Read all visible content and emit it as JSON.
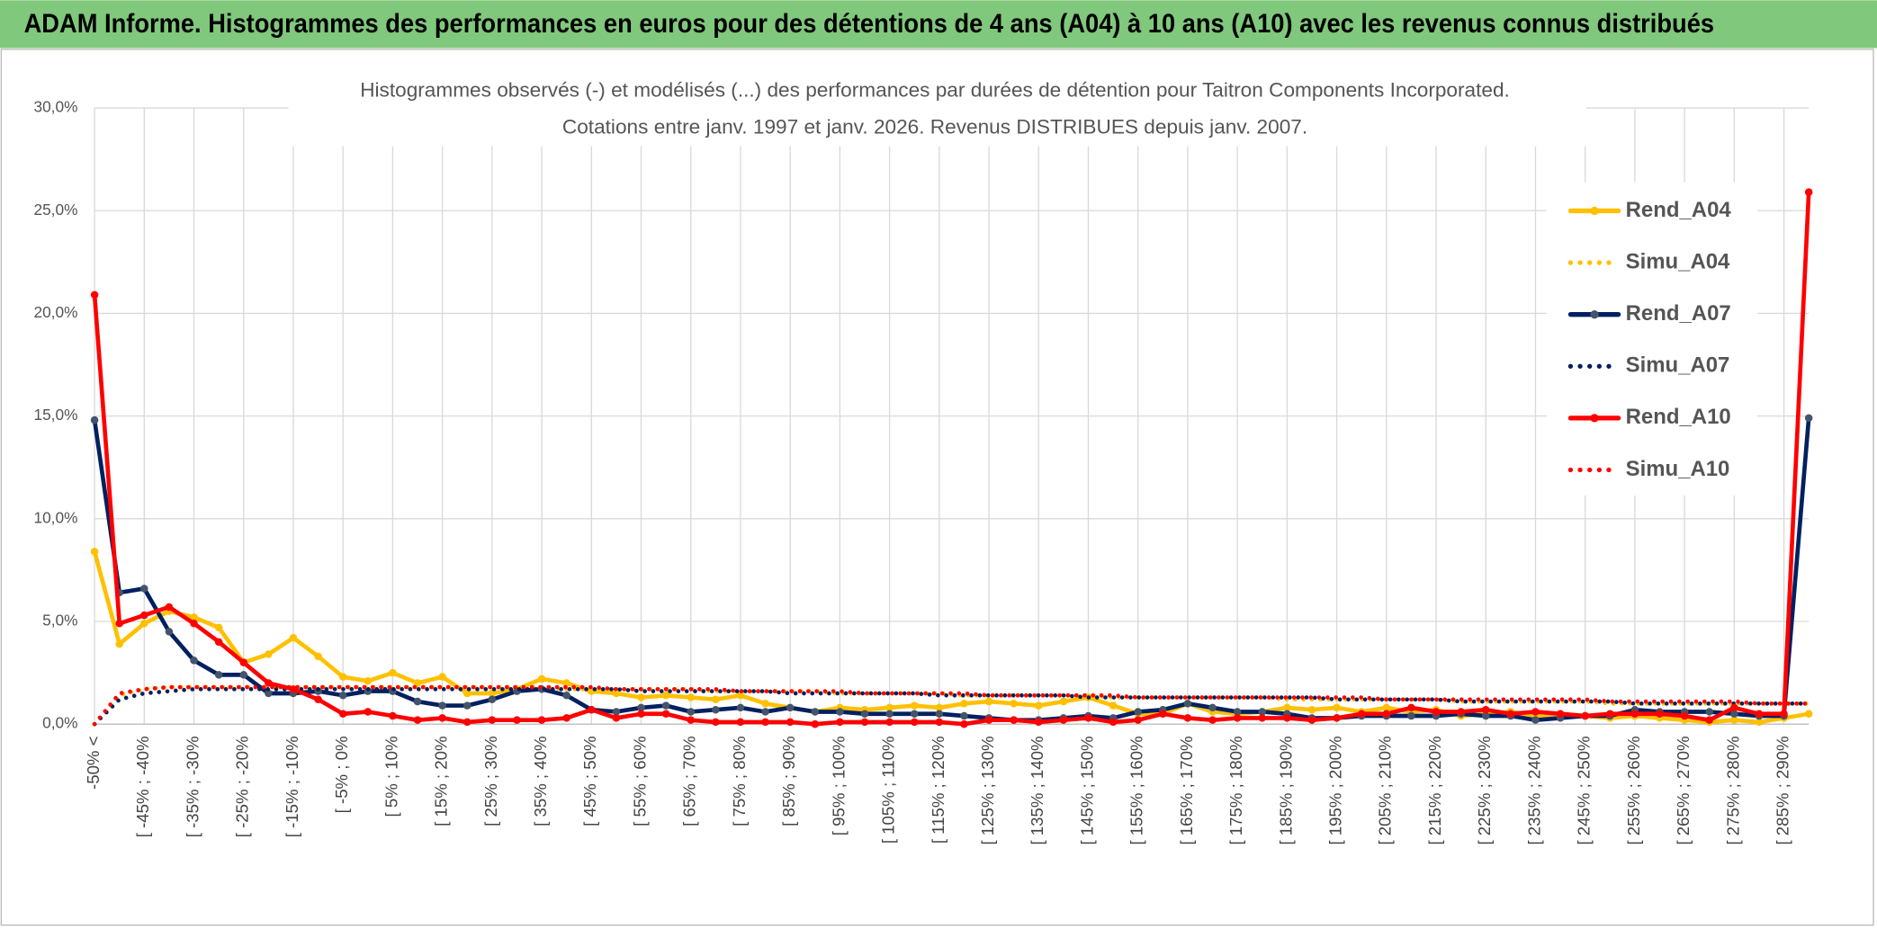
{
  "header": {
    "title": "ADAM Informe. Histogrammes des performances en euros pour des détentions de 4 ans (A04) à 10 ans (A10) avec les revenus connus distribués"
  },
  "chart_data": {
    "type": "line",
    "title": "Histogrammes observés (-) et modélisés (...) des performances par durées de détention pour Taitron Components Incorporated.",
    "subtitle": "Cotations entre janv. 1997 et janv. 2026. Revenus DISTRIBUES depuis janv. 2007.",
    "categories": [
      "-50% <",
      null,
      "[ -45% ; -40%",
      null,
      "[ -35% ; -30%",
      null,
      "[ -25% ; -20%",
      null,
      "[ -15% ; -10%",
      null,
      "[ -5% ; 0%",
      null,
      "[ 5% ; 10%",
      null,
      "[ 15% ; 20%",
      null,
      "[ 25% ; 30%",
      null,
      "[ 35% ; 40%",
      null,
      "[ 45% ; 50%",
      null,
      "[ 55% ; 60%",
      null,
      "[ 65% ; 70%",
      null,
      "[ 75% ; 80%",
      null,
      "[ 85% ; 90%",
      null,
      "[ 95% ; 100%",
      null,
      "[ 105% ; 110%",
      null,
      "[ 115% ; 120%",
      null,
      "[ 125% ; 130%",
      null,
      "[ 135% ; 140%",
      null,
      "[ 145% ; 150%",
      null,
      "[ 155% ; 160%",
      null,
      "[ 165% ; 170%",
      null,
      "[ 175% ; 180%",
      null,
      "[ 185% ; 190%",
      null,
      "[ 195% ; 200%",
      null,
      "[ 205% ; 210%",
      null,
      "[ 215% ; 220%",
      null,
      "[ 225% ; 230%",
      null,
      "[ 235% ; 240%",
      null,
      "[ 245% ; 250%",
      null,
      "[ 255% ; 260%",
      null,
      "[ 265% ; 270%",
      null,
      "[ 275% ; 280%",
      null,
      "[ 285% ; 290%",
      null
    ],
    "ylim": [
      0,
      30
    ],
    "yticks": [
      {
        "value": 0,
        "label": "0,0%"
      },
      {
        "value": 5,
        "label": "5,0%"
      },
      {
        "value": 10,
        "label": "10,0%"
      },
      {
        "value": 15,
        "label": "15,0%"
      },
      {
        "value": 20,
        "label": "20,0%"
      },
      {
        "value": 25,
        "label": "25,0%"
      },
      {
        "value": 30,
        "label": "30,0%"
      }
    ],
    "grid": true,
    "legend": "right",
    "series": [
      {
        "name": "Rend_A04",
        "color": "#ffc000",
        "style": "solid",
        "markers": true,
        "values": [
          8.4,
          3.9,
          4.9,
          5.5,
          5.2,
          4.7,
          3.0,
          3.4,
          4.2,
          3.3,
          2.3,
          2.1,
          2.5,
          2.0,
          2.3,
          1.5,
          1.5,
          1.7,
          2.2,
          2.0,
          1.6,
          1.5,
          1.3,
          1.4,
          1.3,
          1.2,
          1.4,
          1.0,
          0.8,
          0.6,
          0.8,
          0.7,
          0.8,
          0.9,
          0.8,
          1.0,
          1.1,
          1.0,
          0.9,
          1.1,
          1.3,
          0.9,
          0.5,
          0.5,
          1.0,
          0.6,
          0.5,
          0.6,
          0.8,
          0.7,
          0.8,
          0.6,
          0.8,
          0.6,
          0.7,
          0.4,
          0.5,
          0.6,
          0.4,
          0.5,
          0.4,
          0.3,
          0.4,
          0.3,
          0.2,
          0.1,
          0.2,
          0.1,
          0.3,
          0.5
        ]
      },
      {
        "name": "Simu_A04",
        "color": "#ffc000",
        "style": "dotted",
        "markers": false,
        "values": [
          0.0,
          1.4,
          1.7,
          1.8,
          1.8,
          1.8,
          1.8,
          1.8,
          1.8,
          1.8,
          1.8,
          1.8,
          1.8,
          1.8,
          1.8,
          1.8,
          1.8,
          1.8,
          1.8,
          1.7,
          1.7,
          1.7,
          1.7,
          1.7,
          1.7,
          1.6,
          1.6,
          1.6,
          1.6,
          1.6,
          1.5,
          1.5,
          1.5,
          1.5,
          1.5,
          1.4,
          1.4,
          1.4,
          1.4,
          1.4,
          1.4,
          1.3,
          1.3,
          1.3,
          1.3,
          1.3,
          1.3,
          1.3,
          1.2,
          1.2,
          1.2,
          1.2,
          1.2,
          1.2,
          1.2,
          1.1,
          1.1,
          1.1,
          1.1,
          1.1,
          1.1,
          1.0,
          1.0,
          1.0,
          1.0,
          1.0,
          1.0,
          1.0,
          1.0,
          1.0
        ]
      },
      {
        "name": "Rend_A07",
        "color": "#002060",
        "style": "solid",
        "markers": true,
        "values": [
          14.8,
          6.4,
          6.6,
          4.5,
          3.1,
          2.4,
          2.4,
          1.5,
          1.5,
          1.6,
          1.4,
          1.6,
          1.6,
          1.1,
          0.9,
          0.9,
          1.2,
          1.6,
          1.7,
          1.4,
          0.7,
          0.6,
          0.8,
          0.9,
          0.6,
          0.7,
          0.8,
          0.6,
          0.8,
          0.6,
          0.6,
          0.5,
          0.5,
          0.5,
          0.5,
          0.4,
          0.3,
          0.2,
          0.2,
          0.3,
          0.4,
          0.3,
          0.6,
          0.7,
          1.0,
          0.8,
          0.6,
          0.6,
          0.5,
          0.3,
          0.3,
          0.4,
          0.4,
          0.4,
          0.4,
          0.5,
          0.4,
          0.4,
          0.2,
          0.3,
          0.4,
          0.4,
          0.7,
          0.6,
          0.6,
          0.6,
          0.5,
          0.4,
          0.4,
          14.9
        ]
      },
      {
        "name": "Simu_A07",
        "color": "#002060",
        "style": "dotted",
        "markers": false,
        "values": [
          0.0,
          1.2,
          1.5,
          1.6,
          1.7,
          1.7,
          1.7,
          1.7,
          1.7,
          1.7,
          1.7,
          1.7,
          1.7,
          1.7,
          1.7,
          1.7,
          1.7,
          1.7,
          1.7,
          1.7,
          1.7,
          1.7,
          1.6,
          1.6,
          1.6,
          1.6,
          1.6,
          1.6,
          1.5,
          1.5,
          1.5,
          1.5,
          1.5,
          1.5,
          1.4,
          1.4,
          1.4,
          1.4,
          1.4,
          1.4,
          1.3,
          1.3,
          1.3,
          1.3,
          1.3,
          1.3,
          1.3,
          1.3,
          1.3,
          1.3,
          1.2,
          1.2,
          1.2,
          1.2,
          1.2,
          1.1,
          1.1,
          1.1,
          1.1,
          1.1,
          1.1,
          1.1,
          1.0,
          1.0,
          1.0,
          1.0,
          1.0,
          1.0,
          1.0,
          1.0
        ]
      },
      {
        "name": "Rend_A10",
        "color": "#ff0000",
        "style": "solid",
        "markers": true,
        "values": [
          20.9,
          4.9,
          5.3,
          5.7,
          4.9,
          4.0,
          3.0,
          2.0,
          1.7,
          1.2,
          0.5,
          0.6,
          0.4,
          0.2,
          0.3,
          0.1,
          0.2,
          0.2,
          0.2,
          0.3,
          0.7,
          0.3,
          0.5,
          0.5,
          0.2,
          0.1,
          0.1,
          0.1,
          0.1,
          0.0,
          0.1,
          0.1,
          0.1,
          0.1,
          0.1,
          0.0,
          0.2,
          0.2,
          0.1,
          0.2,
          0.3,
          0.1,
          0.2,
          0.5,
          0.3,
          0.2,
          0.3,
          0.3,
          0.3,
          0.2,
          0.3,
          0.5,
          0.5,
          0.8,
          0.6,
          0.6,
          0.7,
          0.5,
          0.6,
          0.5,
          0.4,
          0.5,
          0.5,
          0.5,
          0.4,
          0.2,
          0.8,
          0.5,
          0.5,
          25.9
        ]
      },
      {
        "name": "Simu_A10",
        "color": "#ff0000",
        "style": "dotted",
        "markers": false,
        "values": [
          0.0,
          1.5,
          1.7,
          1.8,
          1.8,
          1.8,
          1.8,
          1.8,
          1.8,
          1.8,
          1.8,
          1.8,
          1.8,
          1.8,
          1.8,
          1.8,
          1.8,
          1.8,
          1.8,
          1.8,
          1.8,
          1.7,
          1.7,
          1.7,
          1.7,
          1.7,
          1.6,
          1.6,
          1.6,
          1.6,
          1.6,
          1.5,
          1.5,
          1.5,
          1.5,
          1.5,
          1.4,
          1.4,
          1.4,
          1.4,
          1.4,
          1.4,
          1.3,
          1.3,
          1.3,
          1.3,
          1.3,
          1.3,
          1.3,
          1.3,
          1.3,
          1.3,
          1.2,
          1.2,
          1.2,
          1.2,
          1.2,
          1.2,
          1.2,
          1.2,
          1.2,
          1.1,
          1.1,
          1.1,
          1.1,
          1.1,
          1.1,
          1.0,
          1.0,
          1.0
        ]
      }
    ]
  }
}
